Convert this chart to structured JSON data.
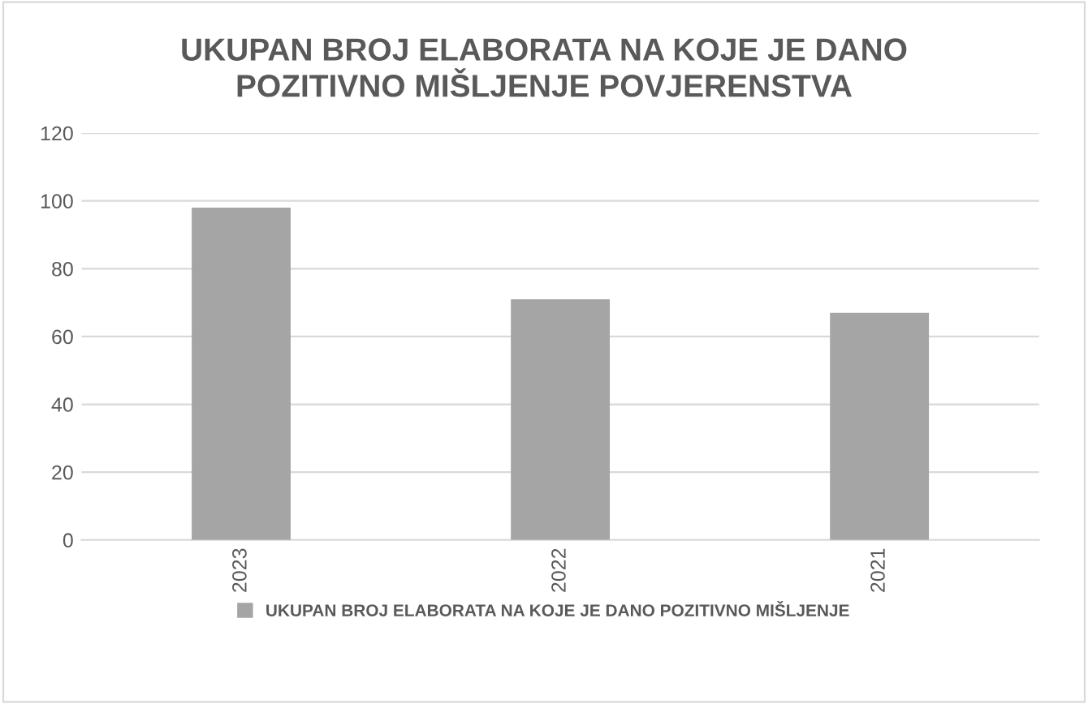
{
  "chart_data": {
    "type": "bar",
    "title": "UKUPAN BROJ ELABORATA NA KOJE JE DANO\nPOZITIVNO MIŠLJENJE POVJERENSTVA",
    "categories": [
      "2023",
      "2022",
      "2021"
    ],
    "series": [
      {
        "name": "UKUPAN BROJ ELABORATA NA KOJE JE DANO POZITIVNO MIŠLJENJE",
        "color": "#a5a5a5",
        "values": [
          98,
          71,
          67
        ]
      }
    ],
    "ylim": [
      0,
      120
    ],
    "yticks": [
      0,
      20,
      40,
      60,
      80,
      100,
      120
    ],
    "grid": "y",
    "legend": "bottom"
  }
}
